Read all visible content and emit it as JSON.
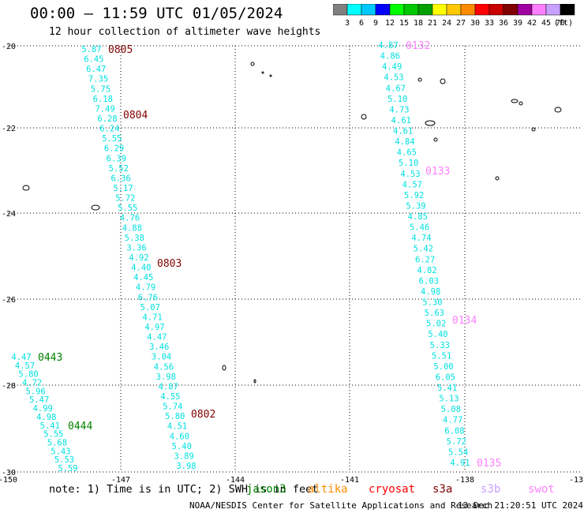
{
  "title": "00:00 – 11:59 UTC 01/05/2024",
  "subtitle": "12 hour collection of altimeter wave heights",
  "colorbar": {
    "labels": [
      "3",
      "6",
      "9",
      "12",
      "15",
      "18",
      "21",
      "24",
      "27",
      "30",
      "33",
      "36",
      "39",
      "42",
      "45",
      "70"
    ],
    "unit": "(ft)",
    "colors": [
      "#808080",
      "#00ffff",
      "#00c8ff",
      "#0000ff",
      "#00ff00",
      "#00c800",
      "#00a000",
      "#ffff00",
      "#ffc800",
      "#ff8c00",
      "#ff0000",
      "#c80000",
      "#800000",
      "#a000a0",
      "#ff80ff",
      "#c8a0ff",
      "#000000"
    ]
  },
  "axes": {
    "lon_labels": [
      "-150",
      "-147",
      "-144",
      "-141",
      "-138",
      "-13"
    ],
    "lat_labels": [
      "-20",
      "-22",
      "-24",
      "-26",
      "-28",
      "-30"
    ]
  },
  "note": "note:  1) Time is in UTC; 2) SWH is in feet",
  "legend": [
    {
      "name": "jason3",
      "color": "#008000"
    },
    {
      "name": "altika",
      "color": "#ff8c00"
    },
    {
      "name": "cryosat",
      "color": "#ff0000"
    },
    {
      "name": "s3a",
      "color": "#800000"
    },
    {
      "name": "s3b",
      "color": "#c8a0ff"
    },
    {
      "name": "swot",
      "color": "#ff80ff"
    }
  ],
  "credit": "NOAA/NESDIS Center for Satellite Applications and Research",
  "generated": "13 Dec 21:20:51 UTC 2024",
  "tracks": [
    {
      "name": "s3a-pass-1",
      "color": "#00e0e0",
      "values": [
        "5.87",
        "6.45",
        "6.47",
        "7.35",
        "5.75",
        "6.18",
        "7.49",
        "6.28",
        "6.24",
        "5.55",
        "6.29",
        "6.39",
        "5.52",
        "6.36",
        "5.17",
        "5.72",
        "5.55",
        "4.76",
        "4.88",
        "5.38",
        "3.36",
        "4.92",
        "4.40",
        "4.45",
        "4.79",
        "6.76",
        "5.07",
        "4.71",
        "4.97",
        "4.47",
        "3.46",
        "3.04",
        "4.56",
        "3.98",
        "4.87",
        "4.55",
        "5.74",
        "5.80",
        "4.51",
        "4.60",
        "5.40",
        "3.89",
        "3.98"
      ],
      "time_labels": [
        {
          "text": "0805",
          "color": "#800000"
        },
        {
          "text": "0804",
          "color": "#800000"
        },
        {
          "text": "0803",
          "color": "#800000"
        },
        {
          "text": "0802",
          "color": "#800000"
        }
      ]
    },
    {
      "name": "jason3-pass-1",
      "color": "#00e0e0",
      "values": [
        "4.47",
        "4.57",
        "5.80",
        "4.72",
        "5.96",
        "5.47",
        "4.99",
        "4.98",
        "5.41",
        "5.55",
        "5.68",
        "5.43",
        "5.53",
        "5.59"
      ],
      "time_labels": [
        {
          "text": "0443",
          "color": "#008000"
        },
        {
          "text": "0444",
          "color": "#008000"
        }
      ]
    },
    {
      "name": "swot-pass-1",
      "color": "#00e0e0",
      "values": [
        "4.87",
        "4.86",
        "4.49",
        "4.53",
        "4.67",
        "5.10",
        "4.73",
        "4.61",
        "4.61",
        "4.84",
        "4.65",
        "5.10",
        "4.53",
        "4.57",
        "5.92",
        "5.39",
        "4.85",
        "5.46",
        "4.74",
        "5.42",
        "6.27",
        "4.82",
        "6.03",
        "4.98",
        "5.30",
        "5.63",
        "5.02",
        "5.40",
        "5.33",
        "5.51",
        "5.00",
        "6.05",
        "5.41",
        "5.13",
        "5.08",
        "4.77",
        "6.08",
        "5.72",
        "5.54",
        "4.91"
      ],
      "time_labels": [
        {
          "text": "0132",
          "color": "#ff80ff"
        },
        {
          "text": "0133",
          "color": "#ff80ff"
        },
        {
          "text": "0134",
          "color": "#ff80ff"
        },
        {
          "text": "0135",
          "color": "#ff80ff"
        }
      ]
    }
  ]
}
